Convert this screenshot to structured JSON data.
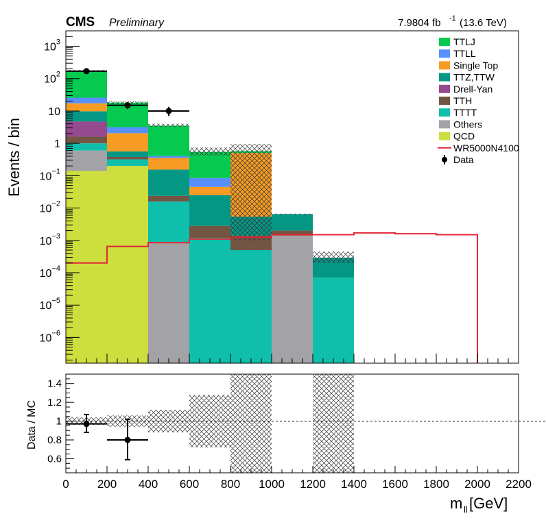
{
  "header": {
    "experiment": "CMS",
    "status": "Preliminary",
    "lumi_value": "7.9804 fb",
    "lumi_exp": "-1",
    "energy": "(13.6 TeV)"
  },
  "chart_data": {
    "type": "bar",
    "stacked": true,
    "bin_edges": [
      0,
      200,
      400,
      600,
      800,
      1000,
      1200,
      1400
    ],
    "xlim": [
      0,
      2200
    ],
    "ylim": [
      1.6e-07,
      3000
    ],
    "yscale": "log",
    "ylabel": "Events / bin",
    "xlabel": "m",
    "xlabel_sub": "ll",
    "xlabel_unit": " [GeV]",
    "x_ticks": [
      0,
      200,
      400,
      600,
      800,
      1000,
      1200,
      1400,
      1600,
      1800,
      2000,
      2200
    ],
    "y_ticks": [
      {
        "value": 1e-06,
        "base": "10",
        "exp": "−6"
      },
      {
        "value": 1e-05,
        "base": "10",
        "exp": "−5"
      },
      {
        "value": 0.0001,
        "base": "10",
        "exp": "−4"
      },
      {
        "value": 0.001,
        "base": "10",
        "exp": "−3"
      },
      {
        "value": 0.01,
        "base": "10",
        "exp": "−2"
      },
      {
        "value": 0.1,
        "base": "10",
        "exp": "−1"
      },
      {
        "value": 1,
        "base": "1",
        "exp": ""
      },
      {
        "value": 10,
        "base": "10",
        "exp": ""
      },
      {
        "value": 100,
        "base": "10",
        "exp": "2"
      },
      {
        "value": 1000,
        "base": "10",
        "exp": "3"
      }
    ],
    "series": [
      {
        "name": "QCD",
        "color": "#cdde3f",
        "values": [
          0.14,
          0.2,
          0,
          0,
          0,
          0,
          0
        ]
      },
      {
        "name": "Others",
        "color": "#a3a3a7",
        "values": [
          0.46,
          0,
          0.00085,
          0,
          0,
          0.0014,
          0
        ]
      },
      {
        "name": "TTTT",
        "color": "#10bfab",
        "values": [
          0.4,
          0.12,
          0.015,
          0.0012,
          0.0005,
          0,
          7e-05
        ]
      },
      {
        "name": "TTH",
        "color": "#725643",
        "values": [
          0.6,
          0.06,
          0.008,
          0.0016,
          0.0009,
          0.0006,
          0
        ]
      },
      {
        "name": "Drell-Yan",
        "color": "#954a8f",
        "values": [
          3.1,
          0,
          0,
          0,
          0,
          0,
          0
        ]
      },
      {
        "name": "TTZ,TTW",
        "color": "#059785",
        "values": [
          5.1,
          0.18,
          0.13,
          0.022,
          0.004,
          0.0045,
          0.00022
        ]
      },
      {
        "name": "Single Top",
        "color": "#f69c24",
        "values": [
          7.5,
          1.5,
          0.2,
          0.02,
          0.5,
          0,
          0
        ]
      },
      {
        "name": "TTLL",
        "color": "#5790fc",
        "values": [
          8.5,
          1.1,
          0.05,
          0.04,
          0,
          0,
          0
        ]
      },
      {
        "name": "TTLJ",
        "color": "#06c950",
        "values": [
          150,
          15,
          3.1,
          0.46,
          0.07,
          0,
          0
        ]
      }
    ],
    "mc_unc_band": [
      {
        "lo": 0,
        "hi": 200,
        "total": 175,
        "lo_val": 165,
        "hi_val": 185
      },
      {
        "lo": 200,
        "hi": 400,
        "total": 18,
        "lo_val": 16.5,
        "hi_val": 19.8
      },
      {
        "lo": 400,
        "hi": 600,
        "total": 3.6,
        "lo_val": 3.2,
        "hi_val": 4.0
      },
      {
        "lo": 600,
        "hi": 800,
        "total": 0.58,
        "lo_val": 0.42,
        "hi_val": 0.74
      },
      {
        "lo": 800,
        "hi": 1000,
        "total": 0.58,
        "lo_val": 0.001,
        "hi_val": 0.95
      },
      {
        "lo": 1000,
        "hi": 1200,
        "total": 0.0065,
        "lo_val": 0.0063,
        "hi_val": 0.0067
      },
      {
        "lo": 1200,
        "hi": 1400,
        "total": 0.0003,
        "lo_val": 0.0002,
        "hi_val": 0.00045
      }
    ],
    "signal": {
      "name": "WR5000N4100",
      "color": "#e42536",
      "edges": [
        0,
        200,
        400,
        600,
        800,
        1000,
        1200,
        1400,
        1600,
        1800,
        2000,
        2200
      ],
      "values": [
        0.0002,
        0.00065,
        0.00085,
        0.0011,
        0.00125,
        0.0015,
        0.0015,
        0.0017,
        0.0016,
        0.0015,
        1e-07
      ]
    },
    "data_points": {
      "name": "Data",
      "points": [
        {
          "x": 100,
          "xerr": 100,
          "y": 170,
          "ylo": 157,
          "yhi": 184
        },
        {
          "x": 300,
          "xerr": 100,
          "y": 15,
          "ylo": 11.5,
          "yhi": 19
        },
        {
          "x": 500,
          "xerr": 100,
          "y": 10,
          "ylo": 7,
          "yhi": 13.5
        }
      ]
    },
    "legend": {
      "placement": "top-right",
      "entries": [
        {
          "label": "TTLJ",
          "kind": "fill",
          "color": "#06c950"
        },
        {
          "label": "TTLL",
          "kind": "fill",
          "color": "#5790fc"
        },
        {
          "label": "Single Top",
          "kind": "fill",
          "color": "#f69c24"
        },
        {
          "label": "TTZ,TTW",
          "kind": "fill",
          "color": "#059785"
        },
        {
          "label": "Drell-Yan",
          "kind": "fill",
          "color": "#954a8f"
        },
        {
          "label": "TTH",
          "kind": "fill",
          "color": "#725643"
        },
        {
          "label": "TTTT",
          "kind": "fill",
          "color": "#10bfab"
        },
        {
          "label": "Others",
          "kind": "fill",
          "color": "#a3a3a7"
        },
        {
          "label": "QCD",
          "kind": "fill",
          "color": "#cdde3f"
        },
        {
          "label": "WR5000N4100",
          "kind": "line",
          "color": "#e42536"
        },
        {
          "label": "Data",
          "kind": "marker",
          "color": "#000000"
        }
      ]
    },
    "ratio": {
      "ylabel": "Data / MC",
      "ylim": [
        0.45,
        1.5
      ],
      "y_ticks": [
        {
          "value": 0.6,
          "label": "0.6"
        },
        {
          "value": 0.8,
          "label": "0.8"
        },
        {
          "value": 1.0,
          "label": "1"
        },
        {
          "value": 1.2,
          "label": "1.2"
        },
        {
          "value": 1.4,
          "label": "1.4"
        }
      ],
      "reference_line": 1.0,
      "unc_band": [
        {
          "lo": 0,
          "hi": 200,
          "ylo": 0.96,
          "yhi": 1.04
        },
        {
          "lo": 200,
          "hi": 400,
          "ylo": 0.94,
          "yhi": 1.06
        },
        {
          "lo": 400,
          "hi": 600,
          "ylo": 0.88,
          "yhi": 1.12
        },
        {
          "lo": 600,
          "hi": 800,
          "ylo": 0.72,
          "yhi": 1.28
        },
        {
          "lo": 800,
          "hi": 1000,
          "ylo": 0.45,
          "yhi": 1.5
        },
        {
          "lo": 1200,
          "hi": 1400,
          "ylo": 0.45,
          "yhi": 1.5
        }
      ],
      "points": [
        {
          "x": 100,
          "xerr": 100,
          "y": 0.97,
          "ylo": 0.88,
          "yhi": 1.07
        },
        {
          "x": 300,
          "xerr": 100,
          "y": 0.8,
          "ylo": 0.59,
          "yhi": 1.02
        }
      ]
    }
  }
}
